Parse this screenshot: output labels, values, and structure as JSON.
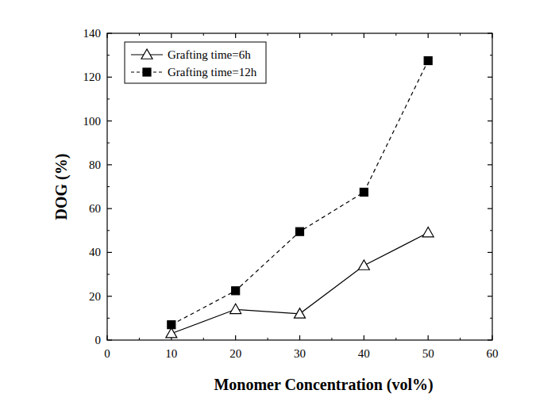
{
  "chart_data": {
    "type": "line",
    "x_label": "Monomer Concentration (vol%)",
    "y_label": "DOG (%)",
    "x": [
      10,
      20,
      30,
      40,
      50
    ],
    "series": [
      {
        "name": "Grafting time=6h",
        "color": "#000000",
        "marker": "triangle-open",
        "line_style": "solid",
        "values": [
          3,
          14,
          12,
          34,
          49
        ]
      },
      {
        "name": "Grafting time=12h",
        "color": "#000000",
        "marker": "square",
        "line_style": "dashed",
        "values": [
          7,
          22.5,
          49.5,
          67.5,
          127.5
        ]
      }
    ],
    "xlim": [
      0,
      60
    ],
    "xticks": [
      0,
      10,
      20,
      30,
      40,
      50,
      60
    ],
    "ylim": [
      0,
      140
    ],
    "yticks": [
      0,
      20,
      40,
      60,
      80,
      100,
      120,
      140
    ],
    "grid": false,
    "legend": "upper left"
  }
}
